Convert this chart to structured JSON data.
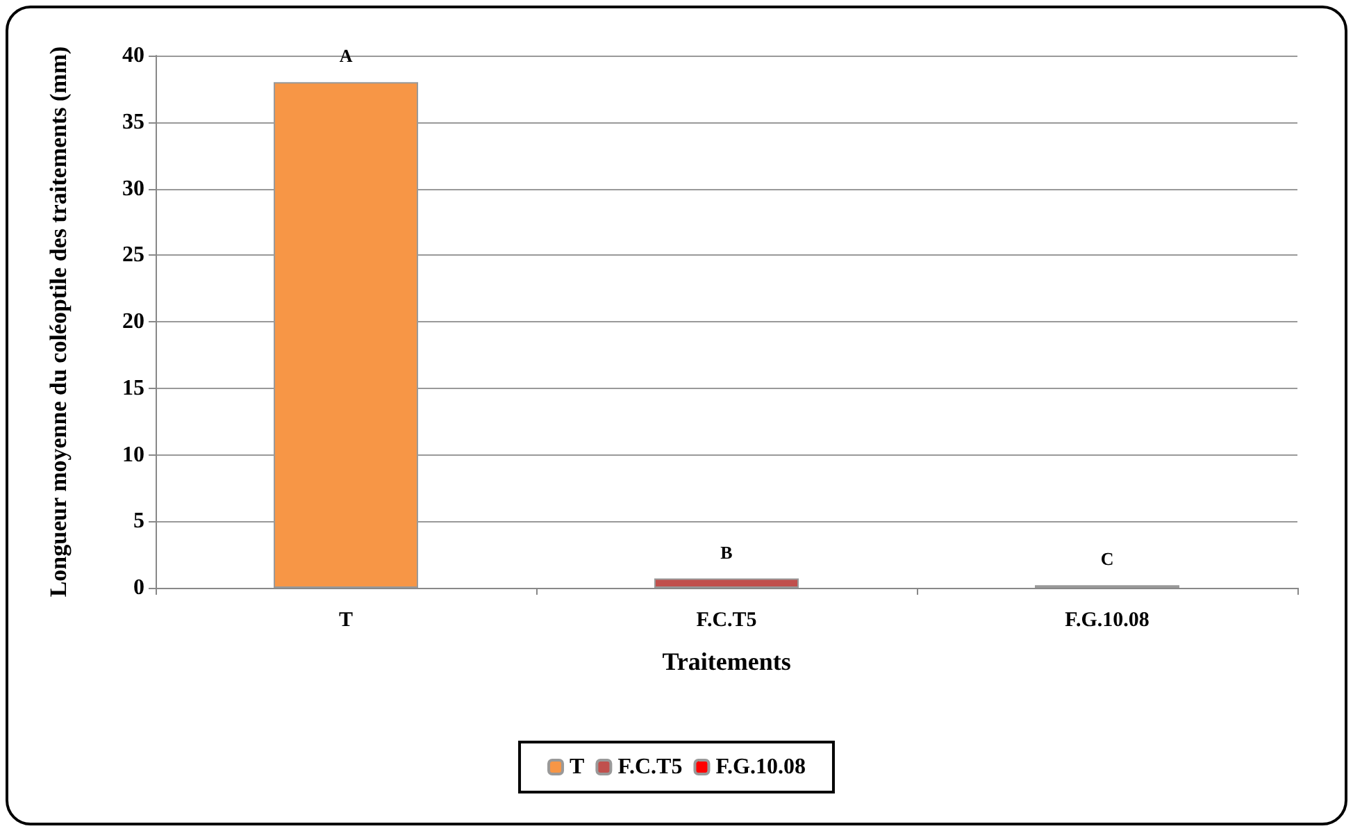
{
  "chart_data": {
    "type": "bar",
    "xlabel": "Traitements",
    "ylabel": "Longueur moyenne du coléoptile des traitements (mm)",
    "categories": [
      "T",
      "F.C.T5",
      "F.G.10.08"
    ],
    "series": [
      {
        "name": "T",
        "color": "#f79646",
        "values": [
          38,
          null,
          null
        ]
      },
      {
        "name": "F.C.T5",
        "color": "#c0504d",
        "values": [
          null,
          0.7,
          null
        ]
      },
      {
        "name": "F.G.10.08",
        "color": "#ff0000",
        "values": [
          null,
          null,
          0.2
        ]
      }
    ],
    "annotations": [
      {
        "text": "A",
        "x": "T",
        "y": 38
      },
      {
        "text": "B",
        "x": "F.C.T5",
        "y": 0.7
      },
      {
        "text": "C",
        "x": "F.G.10.08",
        "y": 0.2
      }
    ],
    "ylim": [
      0,
      40
    ],
    "yticks": [
      0,
      5,
      10,
      15,
      20,
      25,
      30,
      35,
      40
    ],
    "grid": "y",
    "legend": "bottom"
  }
}
